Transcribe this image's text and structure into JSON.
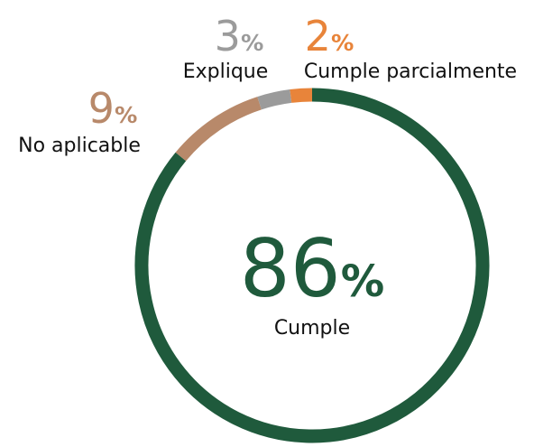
{
  "chart_data": {
    "type": "donut",
    "categories": [
      "Cumple",
      "No aplicable",
      "Explique",
      "Cumple parcialmente"
    ],
    "values": [
      86,
      9,
      3,
      2
    ],
    "value_labels": [
      "86%",
      "9%",
      "3%",
      "2%"
    ],
    "colors": [
      "#1f5a3c",
      "#b8896a",
      "#9b9b9b",
      "#e8843a"
    ]
  }
}
